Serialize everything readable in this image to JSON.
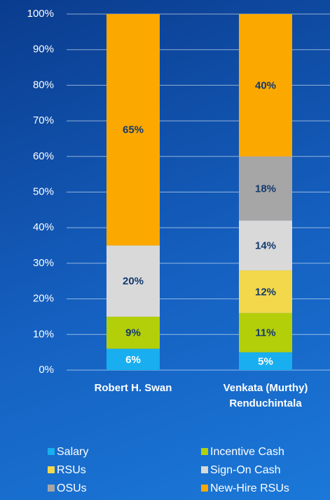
{
  "chart_data": {
    "type": "stacked_bar",
    "categories": [
      "Robert H. Swan",
      "Venkata (Murthy) Renduchintala"
    ],
    "series": [
      {
        "name": "Salary",
        "color": "#19aeef",
        "label_color": "#ffffff",
        "values": [
          6,
          5
        ],
        "value_labels": [
          "6%",
          "5%"
        ]
      },
      {
        "name": "Incentive Cash",
        "color": "#b3cf0a",
        "label_color": "#143a6e",
        "values": [
          9,
          11
        ],
        "value_labels": [
          "9%",
          "11%"
        ]
      },
      {
        "name": "RSUs",
        "color": "#f4d84c",
        "label_color": "#143a6e",
        "values": [
          null,
          12
        ],
        "value_labels": [
          null,
          "12%"
        ]
      },
      {
        "name": "Sign-On Cash",
        "color": "#d9d9d9",
        "label_color": "#143a6e",
        "values": [
          20,
          14
        ],
        "value_labels": [
          "20%",
          "14%"
        ]
      },
      {
        "name": "OSUs",
        "color": "#a6a6a6",
        "label_color": "#143a6e",
        "values": [
          null,
          18
        ],
        "value_labels": [
          null,
          "18%"
        ]
      },
      {
        "name": "New-Hire RSUs",
        "color": "#fba800",
        "label_color": "#143a6e",
        "values": [
          65,
          40
        ],
        "value_labels": [
          "65%",
          "40%"
        ]
      }
    ],
    "ylim": [
      0,
      100
    ],
    "yticks": [
      {
        "value": 0,
        "label": "0%"
      },
      {
        "value": 10,
        "label": "10%"
      },
      {
        "value": 20,
        "label": "20%"
      },
      {
        "value": 30,
        "label": "30%"
      },
      {
        "value": 40,
        "label": "40%"
      },
      {
        "value": 50,
        "label": "50%"
      },
      {
        "value": 60,
        "label": "60%"
      },
      {
        "value": 70,
        "label": "70%"
      },
      {
        "value": 80,
        "label": "80%"
      },
      {
        "value": 90,
        "label": "90%"
      },
      {
        "value": 100,
        "label": "100%"
      }
    ],
    "grid": true
  }
}
